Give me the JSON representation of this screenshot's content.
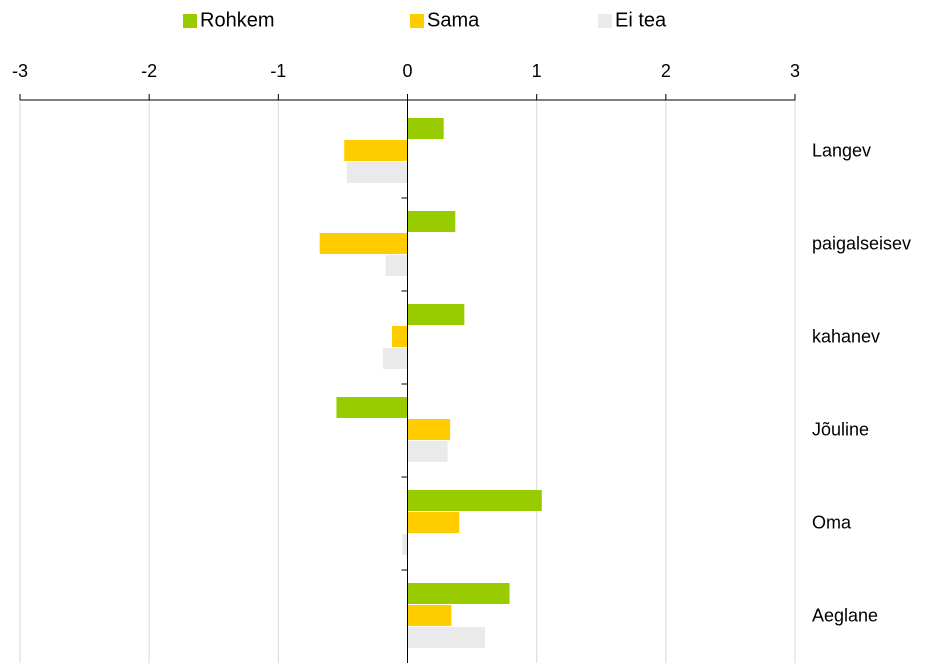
{
  "chart_data": {
    "type": "hbar",
    "categories": [
      "Langev",
      "paigalseisev",
      "kahanev",
      "Jõuline",
      "Oma",
      "Aeglane"
    ],
    "series": [
      {
        "name": "Rohkem",
        "color": "#99cc00",
        "values": [
          0.28,
          0.37,
          0.44,
          -0.55,
          1.04,
          0.79
        ]
      },
      {
        "name": "Sama",
        "color": "#ffcc00",
        "values": [
          -0.49,
          -0.68,
          -0.12,
          0.33,
          0.4,
          0.34
        ]
      },
      {
        "name": "Ei tea",
        "color": "#eaeaea",
        "values": [
          -0.47,
          -0.17,
          -0.19,
          0.31,
          -0.04,
          0.6
        ]
      }
    ],
    "xlim": [
      -3,
      3
    ],
    "xticks": [
      -3,
      -2,
      -1,
      0,
      1,
      2,
      3
    ],
    "grid": true,
    "legend": "top"
  }
}
